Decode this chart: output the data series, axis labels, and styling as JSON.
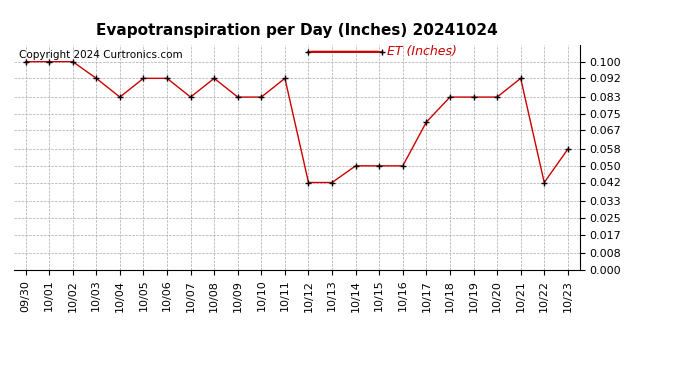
{
  "title": "Evapotranspiration per Day (Inches) 20241024",
  "copyright": "Copyright 2024 Curtronics.com",
  "legend_label": "ET (Inches)",
  "legend_color": "#cc0000",
  "line_color": "#cc0000",
  "marker_color": "#000000",
  "background_color": "#ffffff",
  "grid_color": "#aaaaaa",
  "dates": [
    "09/30",
    "10/01",
    "10/02",
    "10/03",
    "10/04",
    "10/05",
    "10/06",
    "10/07",
    "10/08",
    "10/09",
    "10/10",
    "10/11",
    "10/12",
    "10/13",
    "10/14",
    "10/15",
    "10/16",
    "10/17",
    "10/18",
    "10/19",
    "10/20",
    "10/21",
    "10/22",
    "10/23"
  ],
  "values": [
    0.1,
    0.1,
    0.1,
    0.092,
    0.083,
    0.092,
    0.092,
    0.083,
    0.092,
    0.083,
    0.083,
    0.092,
    0.042,
    0.042,
    0.05,
    0.05,
    0.05,
    0.071,
    0.083,
    0.083,
    0.083,
    0.092,
    0.042,
    0.058
  ],
  "yticks": [
    0.0,
    0.008,
    0.017,
    0.025,
    0.033,
    0.042,
    0.05,
    0.058,
    0.067,
    0.075,
    0.083,
    0.092,
    0.1
  ],
  "ylim": [
    0.0,
    0.108
  ],
  "title_fontsize": 11,
  "tick_fontsize": 8,
  "copyright_fontsize": 7.5,
  "legend_fontsize": 9
}
